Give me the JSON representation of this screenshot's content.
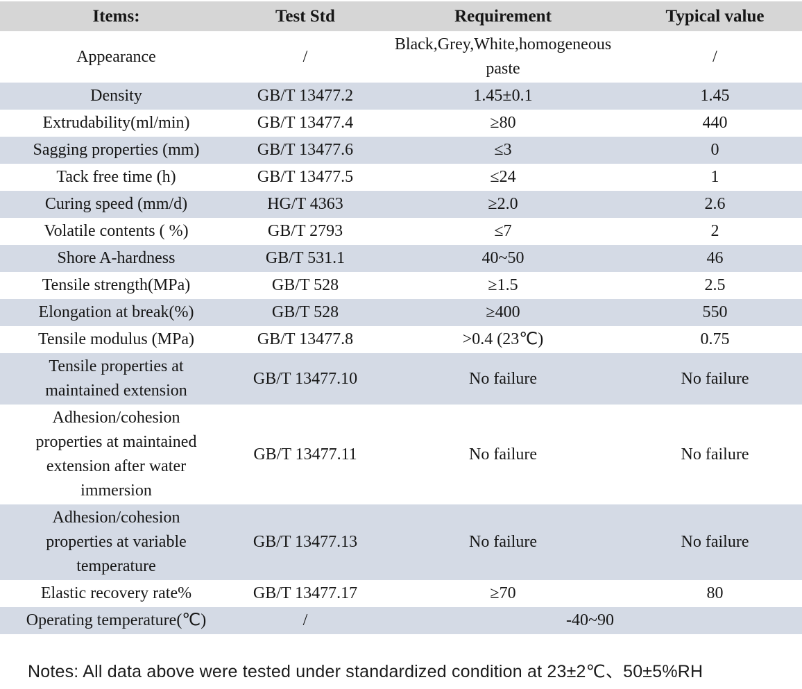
{
  "colors": {
    "header_bg": "#d6d6d6",
    "row_shaded_bg": "#d4dae5",
    "text": "#161616"
  },
  "table": {
    "headers": [
      "Items:",
      "Test Std",
      "Requirement",
      "Typical value"
    ],
    "rows": [
      {
        "item": "Appearance",
        "std": "/",
        "req": "Black,Grey,White,homogeneous paste",
        "typical": "/"
      },
      {
        "item": "Density",
        "std": "GB/T 13477.2",
        "req": "1.45±0.1",
        "typical": "1.45"
      },
      {
        "item": "Extrudability(ml/min)",
        "std": "GB/T 13477.4",
        "req": "≥80",
        "typical": "440"
      },
      {
        "item": "Sagging properties (mm)",
        "std": "GB/T 13477.6",
        "req": "≤3",
        "typical": "0"
      },
      {
        "item": "Tack free time (h)",
        "std": "GB/T 13477.5",
        "req": "≤24",
        "typical": "1"
      },
      {
        "item": "Curing speed (mm/d)",
        "std": "HG/T 4363",
        "req": "≥2.0",
        "typical": "2.6"
      },
      {
        "item": "Volatile contents ( %)",
        "std": "GB/T 2793",
        "req": "≤7",
        "typical": "2"
      },
      {
        "item": "Shore A-hardness",
        "std": "GB/T 531.1",
        "req": "40~50",
        "typical": "46"
      },
      {
        "item": "Tensile strength(MPa)",
        "std": "GB/T 528",
        "req": "≥1.5",
        "typical": "2.5"
      },
      {
        "item": "Elongation at break(%)",
        "std": "GB/T 528",
        "req": "≥400",
        "typical": "550"
      },
      {
        "item": "Tensile modulus (MPa)",
        "std": "GB/T 13477.8",
        "req": ">0.4 (23℃)",
        "typical": "0.75"
      },
      {
        "item": "Tensile properties at maintained extension",
        "std": "GB/T 13477.10",
        "req": "No failure",
        "typical": "No failure"
      },
      {
        "item": "Adhesion/cohesion properties at maintained extension after water immersion",
        "std": "GB/T 13477.11",
        "req": "No failure",
        "typical": "No failure"
      },
      {
        "item": "Adhesion/cohesion properties at variable temperature",
        "std": "GB/T 13477.13",
        "req": "No failure",
        "typical": "No failure"
      },
      {
        "item": "Elastic recovery rate%",
        "std": "GB/T 13477.17",
        "req": "≥70",
        "typical": "80"
      },
      {
        "item": "Operating temperature(℃)",
        "std": "/",
        "req": "-40~90",
        "typical": null
      }
    ]
  },
  "note": "Notes: All data above were tested under standardized condition at 23±2℃、50±5%RH"
}
